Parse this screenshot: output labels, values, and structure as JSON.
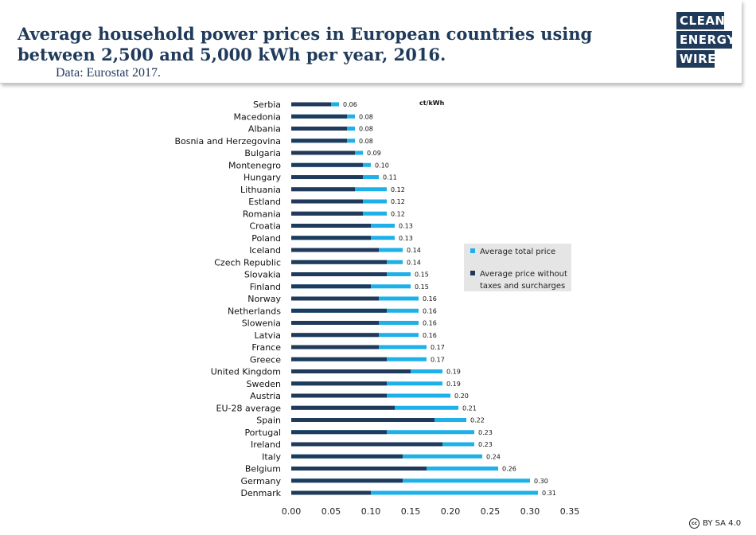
{
  "header": {
    "title": "Average household power prices in European countries using between 2,500 and 5,000 kWh per year, 2016.",
    "source": "Data: Eurostat 2017.",
    "logo": [
      "CLEAN",
      "ENERGY",
      "WIRE"
    ]
  },
  "colors": {
    "total": "#1eb0e8",
    "without_taxes": "#1f3a5a",
    "legend_bg": "#e5e5e5",
    "brand": "#1f3a5a"
  },
  "chart_data": {
    "type": "bar",
    "orientation": "horizontal",
    "stacked_overlay": true,
    "unit_label": "ct/kWh",
    "xlim": [
      0,
      0.35
    ],
    "xticks": [
      "0.00",
      "0.05",
      "0.10",
      "0.15",
      "0.20",
      "0.25",
      "0.30",
      "0.35"
    ],
    "grid": false,
    "legend_position": "right",
    "categories": [
      "Serbia",
      "Macedonia",
      "Albania",
      "Bosnia and Herzegovina",
      "Bulgaria",
      "Montenegro",
      "Hungary",
      "Lithuania",
      "Estland",
      "Romania",
      "Croatia",
      "Poland",
      "Iceland",
      "Czech Republic",
      "Slovakia",
      "Finland",
      "Norway",
      "Netherlands",
      "Slowenia",
      "Latvia",
      "France",
      "Greece",
      "United Kingdom",
      "Sweden",
      "Austria",
      "EU-28 average",
      "Spain",
      "Portugal",
      "Ireland",
      "Italy",
      "Belgium",
      "Germany",
      "Denmark"
    ],
    "series": [
      {
        "name": "Average total price",
        "values": [
          0.06,
          0.08,
          0.08,
          0.08,
          0.09,
          0.1,
          0.11,
          0.12,
          0.12,
          0.12,
          0.13,
          0.13,
          0.14,
          0.14,
          0.15,
          0.15,
          0.16,
          0.16,
          0.16,
          0.16,
          0.17,
          0.17,
          0.19,
          0.19,
          0.2,
          0.21,
          0.22,
          0.23,
          0.23,
          0.24,
          0.26,
          0.3,
          0.31
        ],
        "labels": [
          "0.06",
          "0.08",
          "0.08",
          "0.08",
          "0.09",
          "0.10",
          "0.11",
          "0.12",
          "0.12",
          "0.12",
          "0.13",
          "0.13",
          "0.14",
          "0.14",
          "0.15",
          "0.15",
          "0.16",
          "0.16",
          "0.16",
          "0.16",
          "0.17",
          "0.17",
          "0.19",
          "0.19",
          "0.20",
          "0.21",
          "0.22",
          "0.23",
          "0.23",
          "0.24",
          "0.26",
          "0.30",
          "0.31"
        ]
      },
      {
        "name": "Average price without taxes and surcharges",
        "values": [
          0.05,
          0.07,
          0.07,
          0.07,
          0.08,
          0.09,
          0.09,
          0.08,
          0.09,
          0.09,
          0.1,
          0.1,
          0.11,
          0.12,
          0.12,
          0.1,
          0.11,
          0.12,
          0.11,
          0.11,
          0.11,
          0.12,
          0.15,
          0.12,
          0.12,
          0.13,
          0.18,
          0.12,
          0.19,
          0.14,
          0.17,
          0.14,
          0.1
        ]
      }
    ]
  },
  "footer": {
    "license": "BY SA 4.0",
    "cc": "cc"
  }
}
